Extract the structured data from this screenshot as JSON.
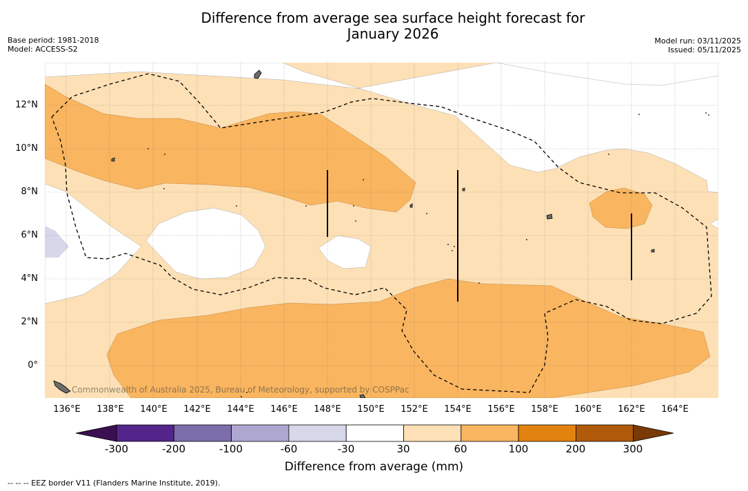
{
  "title_line1": "Difference from average sea surface height forecast for",
  "title_line2": "January 2026",
  "base_period": "Base period: 1981-2018",
  "model": "Model: ACCESS-S2",
  "model_run": "Model run: 03/11/2025",
  "issued": "Issued: 05/11/2025",
  "attribution": "Commonwealth of Australia 2025, Bureau of Meteorology, supported by COSPPac",
  "lat_labels": [
    "12°N",
    "10°N",
    "8°N",
    "6°N",
    "4°N",
    "2°N",
    "0°"
  ],
  "lon_labels": [
    "136°E",
    "138°E",
    "140°E",
    "142°E",
    "144°E",
    "146°E",
    "148°E",
    "150°E",
    "152°E",
    "154°E",
    "156°E",
    "158°E",
    "160°E",
    "162°E",
    "164°E"
  ],
  "colorbar": {
    "title": "Difference from average (mm)",
    "labels": [
      "-300",
      "-200",
      "-100",
      "-60",
      "-30",
      "30",
      "60",
      "100",
      "200",
      "300"
    ],
    "colors": {
      "below_min": "#3a1050",
      "m300_m200": "#53258a",
      "m200_m100": "#7c6eab",
      "m100_m60": "#aea7d0",
      "m60_m30": "#d7d7ea",
      "m30_30": "#ffffff",
      "p30_60": "#fde0b5",
      "p60_100": "#f9b55f",
      "p100_200": "#e2830f",
      "p200_300": "#b15a0b",
      "above_max": "#7a3a06"
    }
  },
  "footnote": "--  --  -- EEZ border V11 (Flanders Marine Institute, 2019)."
}
